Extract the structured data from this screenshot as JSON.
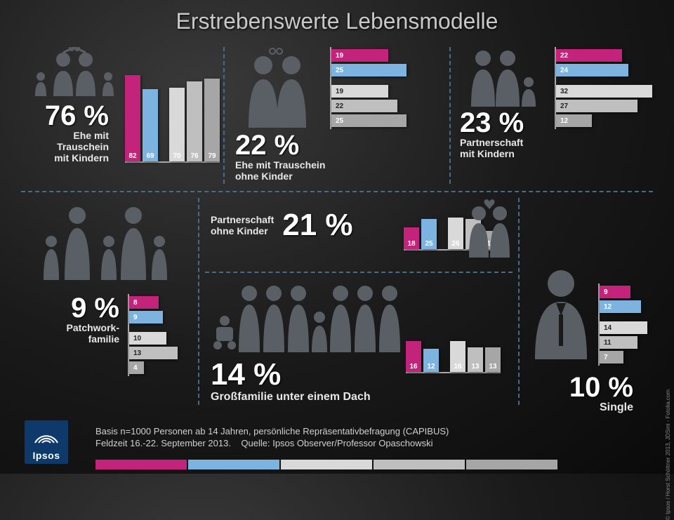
{
  "title": "Erstrebenswerte Lebensmodelle",
  "colors": {
    "magenta": "#c3237a",
    "blue": "#7db3e0",
    "g1": "#d9d9d9",
    "g2": "#bfbfbf",
    "g3": "#a6a6a6",
    "icon": "#5a5f66",
    "axis": "#aaaaaa",
    "divider": "#4a6a8a"
  },
  "panels": {
    "p1": {
      "pct": "76 %",
      "label": "Ehe mit\nTrauschein\nmit Kindern",
      "orient": "v",
      "max": 90,
      "bars": [
        {
          "v": 82,
          "c": "magenta"
        },
        {
          "v": 69,
          "c": "blue"
        },
        {
          "gap": true
        },
        {
          "v": 70,
          "c": "g1"
        },
        {
          "v": 76,
          "c": "g2"
        },
        {
          "v": 79,
          "c": "g3"
        }
      ]
    },
    "p2": {
      "pct": "22 %",
      "label": "Ehe mit Trauschein\nohne Kinder",
      "orient": "h",
      "max": 35,
      "bars": [
        {
          "v": 19,
          "c": "magenta"
        },
        {
          "v": 25,
          "c": "blue"
        },
        {
          "gap": true
        },
        {
          "v": 19,
          "c": "g1"
        },
        {
          "v": 22,
          "c": "g2"
        },
        {
          "v": 25,
          "c": "g3"
        }
      ]
    },
    "p3": {
      "pct": "23 %",
      "label": "Partnerschaft\nmit Kindern",
      "orient": "h",
      "max": 35,
      "bars": [
        {
          "v": 22,
          "c": "magenta"
        },
        {
          "v": 24,
          "c": "blue"
        },
        {
          "gap": true
        },
        {
          "v": 32,
          "c": "g1"
        },
        {
          "v": 27,
          "c": "g2"
        },
        {
          "v": 12,
          "c": "g3"
        }
      ]
    },
    "p4": {
      "pct": "21 %",
      "label": "Partnerschaft\nohne Kinder",
      "orient": "v",
      "max": 35,
      "bars": [
        {
          "v": 18,
          "c": "magenta"
        },
        {
          "v": 25,
          "c": "blue"
        },
        {
          "gap": true
        },
        {
          "v": 26,
          "c": "g1"
        },
        {
          "v": 25,
          "c": "g2"
        },
        {
          "v": 15,
          "c": "g3"
        }
      ]
    },
    "p5": {
      "pct": "9 %",
      "label": "Patchwork-\nfamilie",
      "orient": "h",
      "max": 18,
      "bars": [
        {
          "v": 8,
          "c": "magenta"
        },
        {
          "v": 9,
          "c": "blue"
        },
        {
          "gap": true
        },
        {
          "v": 10,
          "c": "g1"
        },
        {
          "v": 13,
          "c": "g2"
        },
        {
          "v": 4,
          "c": "g3"
        }
      ]
    },
    "p6": {
      "pct": "14 %",
      "label": "Großfamilie unter einem Dach",
      "orient": "v",
      "max": 22,
      "bars": [
        {
          "v": 16,
          "c": "magenta"
        },
        {
          "v": 12,
          "c": "blue"
        },
        {
          "gap": true
        },
        {
          "v": 16,
          "c": "g1"
        },
        {
          "v": 13,
          "c": "g2"
        },
        {
          "v": 13,
          "c": "g3"
        }
      ]
    },
    "p7": {
      "pct": "10 %",
      "label": "Single",
      "orient": "h",
      "max": 18,
      "bars": [
        {
          "v": 9,
          "c": "magenta"
        },
        {
          "v": 12,
          "c": "blue"
        },
        {
          "gap": true
        },
        {
          "v": 14,
          "c": "g1"
        },
        {
          "v": 11,
          "c": "g2"
        },
        {
          "v": 7,
          "c": "g3"
        }
      ]
    }
  },
  "footer": {
    "line1": "Basis n=1000 Personen ab 14 Jahren, persönliche Repräsentativbefragung (CAPIBUS)",
    "line2_a": "Feldzeit 16.-22. September 2013.",
    "line2_b": "Quelle: Ipsos Observer/Professor Opaschowski",
    "logo": "Ipsos"
  },
  "legend_widths": [
    130,
    130,
    130,
    130,
    130
  ],
  "copyright": "© Ipsos / Horst Schöttner 2013, JDSmi - Fotolia.com"
}
